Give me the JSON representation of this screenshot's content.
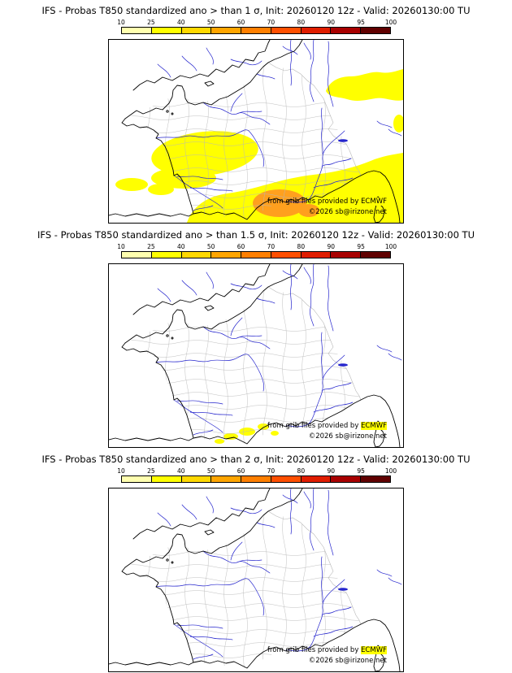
{
  "colorbar": {
    "ticks": [
      "10",
      "25",
      "40",
      "50",
      "60",
      "70",
      "80",
      "90",
      "95",
      "100"
    ],
    "colors": [
      "#ffffaf",
      "#ffff00",
      "#ffd800",
      "#ffa500",
      "#ff7f00",
      "#ff4f00",
      "#e01d00",
      "#a80000",
      "#600000"
    ]
  },
  "map_colors": {
    "coast": "#000000",
    "dept": "#b8b8b8",
    "river": "#2525cd",
    "prob_low": "#ffff00",
    "prob_mid": "#ffa01e"
  },
  "attribution": {
    "provider_prefix": "from grib files provided by ",
    "provider_name": "ECMWF",
    "copyright": "©2026 sb@irizone.net"
  },
  "panels": [
    {
      "id": "1sigma",
      "title": "IFS - Probas T850  standardized ano > than 1 σ, Init: 20260120 12z - Valid: 20260130:00 TU"
    },
    {
      "id": "1.5sigma",
      "title": "IFS - Probas T850  standardized ano > than 1.5 σ, Init: 20260120 12z - Valid: 20260130:00 TU"
    },
    {
      "id": "2sigma",
      "title": "IFS - Probas T850  standardized ano > than 2 σ, Init: 20260120 12z - Valid: 20260130:00 TU"
    }
  ]
}
